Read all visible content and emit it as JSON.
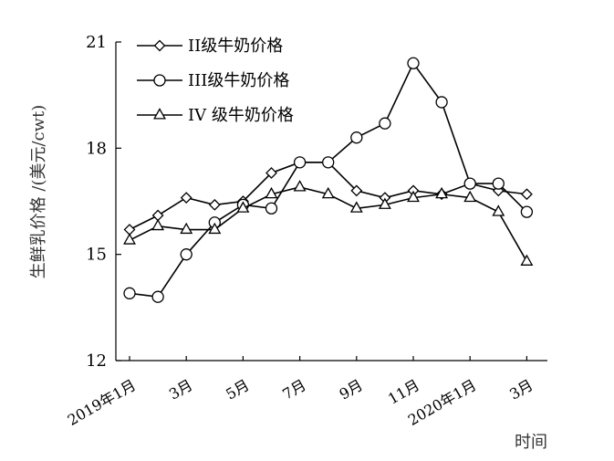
{
  "chart_data": {
    "type": "line",
    "title": "",
    "xlabel": "时间",
    "ylabel": "生鲜乳价格 /(美元/cwt)",
    "ylim": [
      12,
      21
    ],
    "yticks": [
      12,
      15,
      18,
      21
    ],
    "x_tick_labels": [
      "2019年1月",
      "3月",
      "5月",
      "7月",
      "9月",
      "11月",
      "2020年1月",
      "3月"
    ],
    "x_tick_positions": [
      0,
      2,
      4,
      6,
      8,
      10,
      12,
      14
    ],
    "x": [
      "2019-01",
      "2019-02",
      "2019-03",
      "2019-04",
      "2019-05",
      "2019-06",
      "2019-07",
      "2019-08",
      "2019-09",
      "2019-10",
      "2019-11",
      "2019-12",
      "2020-01",
      "2020-02",
      "2020-03",
      "2020-04"
    ],
    "grid": false,
    "legend_position": "top-left",
    "series": [
      {
        "name": "II级牛奶价格",
        "marker": "diamond",
        "values": [
          15.7,
          16.1,
          16.6,
          16.4,
          16.5,
          17.3,
          17.6,
          17.6,
          16.8,
          16.6,
          16.8,
          16.7,
          17.0,
          16.8,
          16.7,
          null
        ]
      },
      {
        "name": "III级牛奶价格",
        "marker": "circle",
        "values": [
          13.9,
          13.8,
          15.0,
          15.9,
          16.4,
          16.3,
          17.6,
          17.6,
          18.3,
          18.7,
          20.4,
          19.3,
          17.0,
          17.0,
          16.2,
          null
        ]
      },
      {
        "name": "IV 级牛奶价格",
        "marker": "triangle",
        "values": [
          15.4,
          15.8,
          15.7,
          15.7,
          16.3,
          16.7,
          16.9,
          16.7,
          16.3,
          16.4,
          16.6,
          16.7,
          16.6,
          16.2,
          14.8,
          null
        ]
      }
    ]
  }
}
